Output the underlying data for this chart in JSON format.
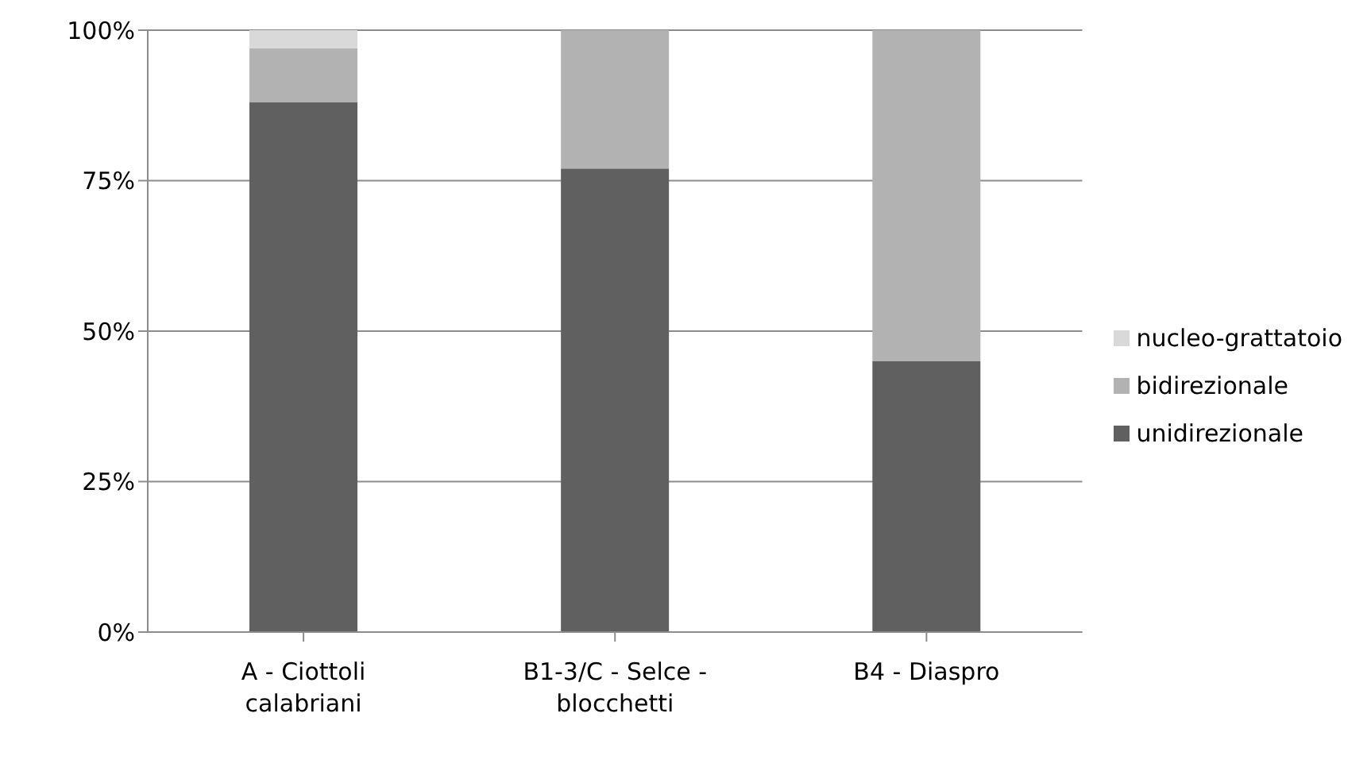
{
  "chart_data": {
    "type": "bar",
    "stacked": true,
    "categories": [
      "A - Ciottoli calabriani",
      "B1-3/C - Selce - blocchetti",
      "B4 - Diaspro"
    ],
    "series": [
      {
        "name": "unidirezionale",
        "color": "#606060",
        "values": [
          88,
          77,
          45
        ]
      },
      {
        "name": "bidirezionale",
        "color": "#b2b2b2",
        "values": [
          9,
          23,
          55
        ]
      },
      {
        "name": "nucleo-grattatoio",
        "color": "#d9d9d9",
        "values": [
          3,
          0,
          0
        ]
      }
    ],
    "ylim": [
      0,
      100
    ],
    "yticks": [
      {
        "value": 0,
        "label": "0%"
      },
      {
        "value": 25,
        "label": "25%"
      },
      {
        "value": 50,
        "label": "50%"
      },
      {
        "value": 75,
        "label": "75%"
      },
      {
        "value": 100,
        "label": "100%"
      }
    ],
    "grid": "y",
    "legend": "right"
  }
}
